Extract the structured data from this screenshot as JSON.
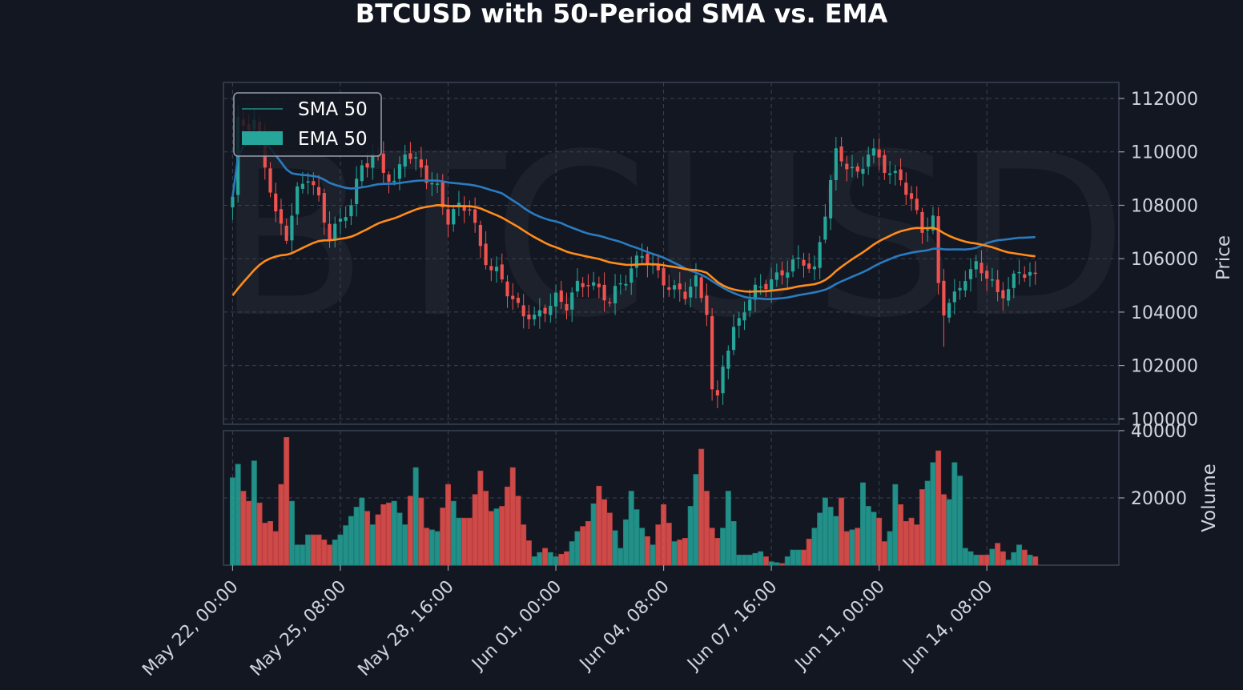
{
  "chart_data": {
    "type": "candlestick",
    "title": "BTCUSD with 50-Period SMA vs. EMA",
    "watermark": "BTCUSD",
    "price_panel": {
      "ylabel": "Price",
      "ylim": [
        99800,
        112600
      ],
      "yticks": [
        100000,
        102000,
        104000,
        106000,
        108000,
        110000,
        112000
      ],
      "grid": true
    },
    "volume_panel": {
      "ylabel": "Volume",
      "ylim": [
        0,
        40000
      ],
      "yticks": [
        20000,
        40000
      ],
      "grid": true
    },
    "xlim": [
      -1.7,
      164.5
    ],
    "x_ticks": [
      {
        "index": 0,
        "label": "May 22, 00:00"
      },
      {
        "index": 20,
        "label": "May 25, 08:00"
      },
      {
        "index": 40,
        "label": "May 28, 16:00"
      },
      {
        "index": 60,
        "label": "Jun 01, 00:00"
      },
      {
        "index": 80,
        "label": "Jun 04, 08:00"
      },
      {
        "index": 100,
        "label": "Jun 07, 16:00"
      },
      {
        "index": 120,
        "label": "Jun 11, 00:00"
      },
      {
        "index": 140,
        "label": "Jun 14, 08:00"
      }
    ],
    "legend": {
      "placement": "upper-left",
      "entries": [
        {
          "label": "SMA 50",
          "swatch": "line"
        },
        {
          "label": "EMA 50",
          "swatch": "patch"
        }
      ]
    },
    "colors": {
      "background": "#131722",
      "up": "#26a69a",
      "down": "#ef5350",
      "sma": "#2a7bbf",
      "ema": "#ff8c1a",
      "grid": "#3b4252",
      "text": "#d1d4dc"
    },
    "close_keypoints": [
      [
        0,
        108200
      ],
      [
        1,
        111000
      ],
      [
        4,
        111200
      ],
      [
        6,
        109500
      ],
      [
        8,
        107500
      ],
      [
        10,
        107000
      ],
      [
        12,
        108500
      ],
      [
        14,
        109000
      ],
      [
        16,
        108200
      ],
      [
        18,
        107000
      ],
      [
        20,
        107300
      ],
      [
        22,
        108000
      ],
      [
        24,
        109600
      ],
      [
        26,
        109900
      ],
      [
        28,
        109200
      ],
      [
        30,
        108800
      ],
      [
        32,
        110200
      ],
      [
        34,
        109500
      ],
      [
        36,
        109000
      ],
      [
        38,
        108700
      ],
      [
        40,
        107500
      ],
      [
        42,
        107800
      ],
      [
        44,
        108000
      ],
      [
        46,
        106500
      ],
      [
        48,
        105500
      ],
      [
        50,
        105200
      ],
      [
        52,
        104500
      ],
      [
        54,
        104000
      ],
      [
        56,
        103600
      ],
      [
        58,
        104200
      ],
      [
        60,
        104600
      ],
      [
        62,
        104200
      ],
      [
        64,
        104900
      ],
      [
        66,
        105300
      ],
      [
        68,
        104800
      ],
      [
        70,
        104300
      ],
      [
        72,
        105100
      ],
      [
        74,
        105700
      ],
      [
        76,
        106100
      ],
      [
        78,
        105600
      ],
      [
        80,
        105300
      ],
      [
        82,
        104800
      ],
      [
        84,
        104600
      ],
      [
        86,
        105200
      ],
      [
        88,
        104200
      ],
      [
        89,
        101000
      ],
      [
        90,
        100600
      ],
      [
        91,
        102000
      ],
      [
        93,
        103300
      ],
      [
        95,
        104300
      ],
      [
        97,
        104700
      ],
      [
        100,
        105200
      ],
      [
        102,
        105600
      ],
      [
        104,
        105700
      ],
      [
        106,
        105900
      ],
      [
        108,
        105600
      ],
      [
        110,
        107800
      ],
      [
        112,
        109800
      ],
      [
        114,
        109600
      ],
      [
        116,
        109200
      ],
      [
        118,
        109900
      ],
      [
        120,
        109700
      ],
      [
        122,
        109300
      ],
      [
        124,
        109000
      ],
      [
        126,
        108000
      ],
      [
        128,
        107200
      ],
      [
        130,
        107500
      ],
      [
        131,
        105000
      ],
      [
        132,
        104000
      ],
      [
        134,
        104500
      ],
      [
        136,
        105500
      ],
      [
        138,
        105700
      ],
      [
        140,
        105300
      ],
      [
        142,
        104700
      ],
      [
        144,
        105000
      ],
      [
        146,
        105400
      ],
      [
        148,
        105400
      ],
      [
        149,
        105300
      ]
    ],
    "volume_keypoints": [
      [
        0,
        26000
      ],
      [
        1,
        30000
      ],
      [
        2,
        22000
      ],
      [
        3,
        19000
      ],
      [
        4,
        31000
      ],
      [
        5,
        18500
      ],
      [
        6,
        12500
      ],
      [
        7,
        13000
      ],
      [
        8,
        10000
      ],
      [
        9,
        24000
      ],
      [
        10,
        38000
      ],
      [
        11,
        19000
      ],
      [
        12,
        6000
      ],
      [
        13,
        6000
      ],
      [
        14,
        9000
      ],
      [
        16,
        9000
      ],
      [
        18,
        6000
      ],
      [
        20,
        9000
      ],
      [
        24,
        20000
      ],
      [
        26,
        12000
      ],
      [
        28,
        18000
      ],
      [
        30,
        19000
      ],
      [
        32,
        12000
      ],
      [
        34,
        29000
      ],
      [
        36,
        11000
      ],
      [
        38,
        10000
      ],
      [
        40,
        24000
      ],
      [
        42,
        14000
      ],
      [
        44,
        14000
      ],
      [
        46,
        28000
      ],
      [
        48,
        16000
      ],
      [
        50,
        17500
      ],
      [
        52,
        29000
      ],
      [
        54,
        12000
      ],
      [
        56,
        2500
      ],
      [
        58,
        5000
      ],
      [
        60,
        2500
      ],
      [
        62,
        4000
      ],
      [
        64,
        10000
      ],
      [
        66,
        13000
      ],
      [
        68,
        23500
      ],
      [
        70,
        15500
      ],
      [
        72,
        5000
      ],
      [
        74,
        22000
      ],
      [
        76,
        11000
      ],
      [
        78,
        6000
      ],
      [
        80,
        18000
      ],
      [
        82,
        7000
      ],
      [
        84,
        8000
      ],
      [
        86,
        27000
      ],
      [
        87,
        34500
      ],
      [
        88,
        22000
      ],
      [
        89,
        11000
      ],
      [
        90,
        8000
      ],
      [
        91,
        11000
      ],
      [
        92,
        22000
      ],
      [
        93,
        13000
      ],
      [
        94,
        3000
      ],
      [
        96,
        3000
      ],
      [
        98,
        4000
      ],
      [
        100,
        1000
      ],
      [
        102,
        500
      ],
      [
        104,
        4500
      ],
      [
        106,
        4500
      ],
      [
        108,
        11000
      ],
      [
        110,
        20000
      ],
      [
        112,
        14500
      ],
      [
        113,
        20000
      ],
      [
        114,
        10000
      ],
      [
        116,
        11000
      ],
      [
        117,
        24500
      ],
      [
        118,
        17500
      ],
      [
        120,
        14000
      ],
      [
        121,
        7000
      ],
      [
        122,
        10000
      ],
      [
        123,
        24000
      ],
      [
        124,
        18000
      ],
      [
        125,
        13000
      ],
      [
        126,
        14000
      ],
      [
        127,
        12000
      ],
      [
        128,
        22500
      ],
      [
        129,
        25000
      ],
      [
        130,
        30500
      ],
      [
        131,
        34000
      ],
      [
        132,
        21000
      ],
      [
        133,
        19500
      ],
      [
        134,
        30500
      ],
      [
        135,
        26500
      ],
      [
        136,
        5000
      ],
      [
        138,
        3000
      ],
      [
        140,
        3000
      ],
      [
        142,
        6500
      ],
      [
        144,
        1500
      ],
      [
        146,
        6000
      ],
      [
        148,
        3000
      ],
      [
        149,
        2500
      ]
    ],
    "n_bars": 150
  }
}
